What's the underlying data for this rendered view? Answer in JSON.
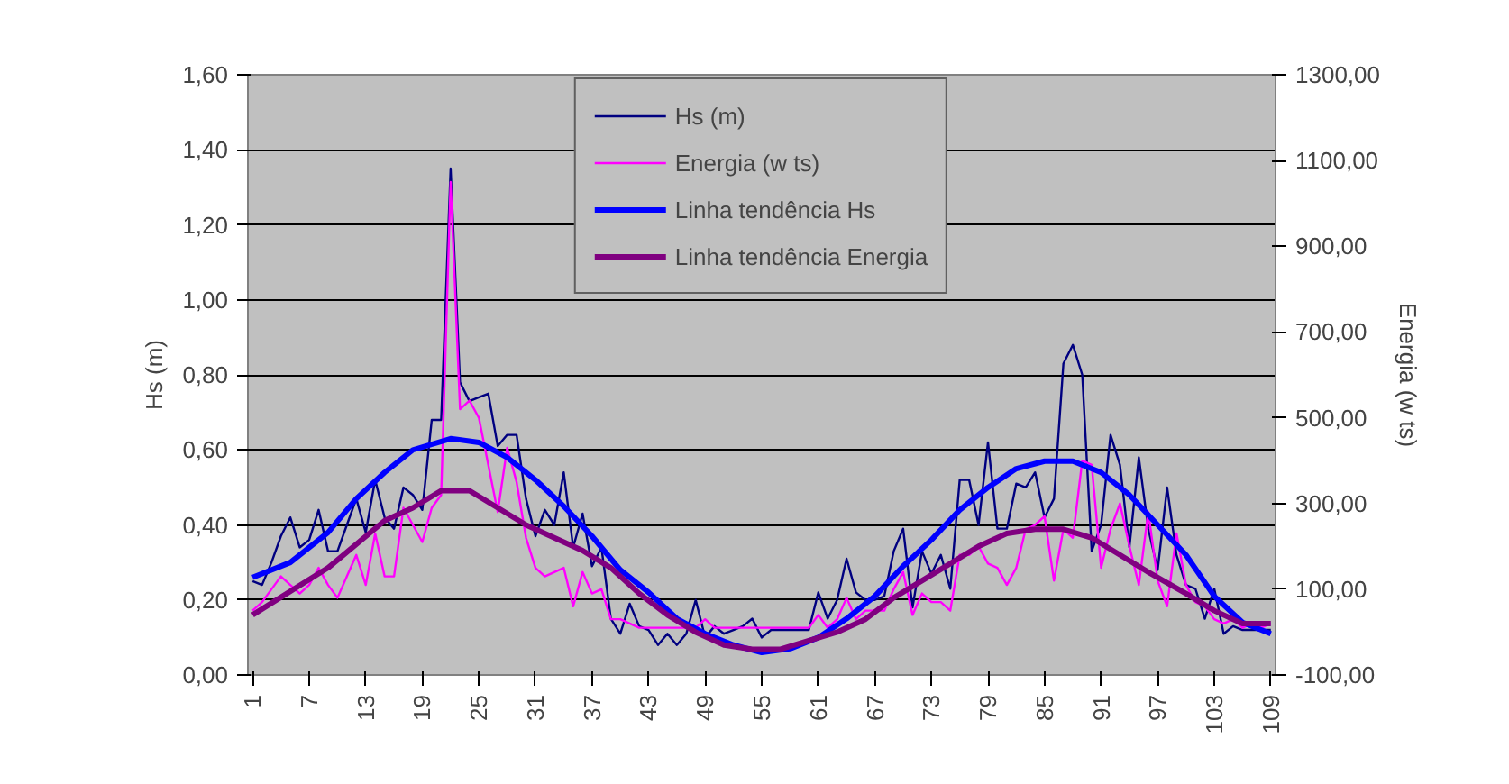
{
  "chart_data": {
    "type": "line",
    "x": [
      1,
      2,
      3,
      4,
      5,
      6,
      7,
      8,
      9,
      10,
      11,
      12,
      13,
      14,
      15,
      16,
      17,
      18,
      19,
      20,
      21,
      22,
      23,
      24,
      25,
      26,
      27,
      28,
      29,
      30,
      31,
      32,
      33,
      34,
      35,
      36,
      37,
      38,
      39,
      40,
      41,
      42,
      43,
      44,
      45,
      46,
      47,
      48,
      49,
      50,
      51,
      52,
      53,
      54,
      55,
      56,
      57,
      58,
      59,
      60,
      61,
      62,
      63,
      64,
      65,
      66,
      67,
      68,
      69,
      70,
      71,
      72,
      73,
      74,
      75,
      76,
      77,
      78,
      79,
      80,
      81,
      82,
      83,
      84,
      85,
      86,
      87,
      88,
      89,
      90,
      91,
      92,
      93,
      94,
      95,
      96,
      97,
      98,
      99,
      100,
      101,
      102,
      103,
      104,
      105,
      106,
      107,
      108,
      109
    ],
    "xlim": [
      0.5,
      109.5
    ],
    "xticks": [
      1,
      7,
      13,
      19,
      25,
      31,
      37,
      43,
      49,
      55,
      61,
      67,
      73,
      79,
      85,
      91,
      97,
      103,
      109
    ],
    "ylabel": "Hs (m)",
    "y2label": "Energia (w ts)",
    "ylim": [
      0,
      1.6
    ],
    "yticks": [
      {
        "value": 0,
        "label": "0,00"
      },
      {
        "value": 0.2,
        "label": "0,20"
      },
      {
        "value": 0.4,
        "label": "0,40"
      },
      {
        "value": 0.6,
        "label": "0,60"
      },
      {
        "value": 0.8,
        "label": "0,80"
      },
      {
        "value": 1.0,
        "label": "1,00"
      },
      {
        "value": 1.2,
        "label": "1,20"
      },
      {
        "value": 1.4,
        "label": "1,40"
      },
      {
        "value": 1.6,
        "label": "1,60"
      }
    ],
    "y2lim": [
      -100,
      1300
    ],
    "y2ticks": [
      {
        "value": -100,
        "label": "-100,00"
      },
      {
        "value": 100,
        "label": "100,00"
      },
      {
        "value": 300,
        "label": "300,00"
      },
      {
        "value": 500,
        "label": "500,00"
      },
      {
        "value": 700,
        "label": "700,00"
      },
      {
        "value": 900,
        "label": "900,00"
      },
      {
        "value": 1100,
        "label": "1100,00"
      },
      {
        "value": 1300,
        "label": "1300,00"
      }
    ],
    "grid": "y",
    "legend": "top",
    "marker": "none",
    "series": [
      {
        "name": "Hs (m)",
        "color": "#000080",
        "values": [
          0.25,
          0.24,
          0.3,
          0.37,
          0.42,
          0.34,
          0.36,
          0.44,
          0.33,
          0.33,
          0.4,
          0.47,
          0.38,
          0.52,
          0.42,
          0.39,
          0.5,
          0.48,
          0.44,
          0.68,
          0.68,
          1.35,
          0.78,
          0.73,
          0.74,
          0.75,
          0.61,
          0.64,
          0.64,
          0.47,
          0.37,
          0.44,
          0.4,
          0.54,
          0.34,
          0.43,
          0.29,
          0.34,
          0.15,
          0.11,
          0.19,
          0.13,
          0.12,
          0.08,
          0.11,
          0.08,
          0.11,
          0.2,
          0.1,
          0.13,
          0.11,
          0.12,
          0.13,
          0.15,
          0.1,
          0.12,
          0.12,
          0.12,
          0.12,
          0.12,
          0.22,
          0.15,
          0.2,
          0.31,
          0.22,
          0.2,
          0.2,
          0.21,
          0.33,
          0.39,
          0.18,
          0.33,
          0.27,
          0.32,
          0.23,
          0.52,
          0.52,
          0.4,
          0.62,
          0.39,
          0.39,
          0.51,
          0.5,
          0.54,
          0.42,
          0.47,
          0.83,
          0.88,
          0.8,
          0.33,
          0.4,
          0.64,
          0.56,
          0.34,
          0.58,
          0.39,
          0.28,
          0.5,
          0.32,
          0.24,
          0.23,
          0.15,
          0.23,
          0.11,
          0.13,
          0.12,
          0.12,
          0.12,
          0.12
        ]
      },
      {
        "name": "Energia (w ts)",
        "color": "#ff00ff",
        "axis": "y2",
        "values": [
          50,
          70,
          100,
          130,
          110,
          90,
          110,
          150,
          110,
          80,
          130,
          180,
          110,
          230,
          130,
          130,
          290,
          250,
          210,
          290,
          320,
          1050,
          520,
          540,
          500,
          390,
          280,
          430,
          350,
          220,
          150,
          130,
          140,
          150,
          60,
          140,
          90,
          100,
          30,
          30,
          20,
          10,
          10,
          10,
          10,
          10,
          10,
          10,
          30,
          10,
          10,
          10,
          10,
          10,
          10,
          10,
          10,
          10,
          10,
          10,
          40,
          10,
          30,
          80,
          30,
          50,
          50,
          50,
          100,
          140,
          40,
          90,
          70,
          70,
          50,
          180,
          180,
          200,
          160,
          150,
          110,
          150,
          240,
          250,
          270,
          120,
          240,
          220,
          400,
          390,
          150,
          240,
          300,
          200,
          110,
          280,
          120,
          60,
          230,
          110,
          70,
          60,
          30,
          20,
          30,
          10,
          20,
          10,
          20
        ]
      },
      {
        "name": "Linha tendência Hs",
        "color": "#0000ff",
        "x": [
          1,
          5,
          9,
          12,
          15,
          18,
          22,
          25,
          28,
          31,
          34,
          37,
          40,
          43,
          46,
          49,
          52,
          55,
          58,
          61,
          64,
          67,
          70,
          73,
          76,
          79,
          82,
          85,
          88,
          91,
          94,
          97,
          100,
          103,
          106,
          109
        ],
        "values": [
          0.26,
          0.3,
          0.38,
          0.47,
          0.54,
          0.6,
          0.63,
          0.62,
          0.58,
          0.52,
          0.45,
          0.37,
          0.28,
          0.22,
          0.15,
          0.11,
          0.08,
          0.06,
          0.07,
          0.1,
          0.15,
          0.21,
          0.29,
          0.36,
          0.44,
          0.5,
          0.55,
          0.57,
          0.57,
          0.54,
          0.48,
          0.4,
          0.32,
          0.21,
          0.14,
          0.11
        ]
      },
      {
        "name": "Linha tendência Energia",
        "color": "#800080",
        "axis": "y2",
        "x": [
          1,
          9,
          15,
          18,
          21,
          24,
          27,
          30,
          33,
          36,
          39,
          42,
          45,
          48,
          51,
          54,
          57,
          60,
          63,
          66,
          69,
          72,
          75,
          78,
          81,
          84,
          87,
          90,
          93,
          96,
          100,
          103,
          106,
          109
        ],
        "values": [
          40,
          150,
          260,
          290,
          330,
          330,
          290,
          250,
          220,
          190,
          150,
          90,
          40,
          0,
          -30,
          -40,
          -40,
          -20,
          0,
          30,
          80,
          120,
          160,
          200,
          230,
          240,
          240,
          220,
          180,
          140,
          90,
          50,
          20,
          20
        ]
      }
    ]
  }
}
